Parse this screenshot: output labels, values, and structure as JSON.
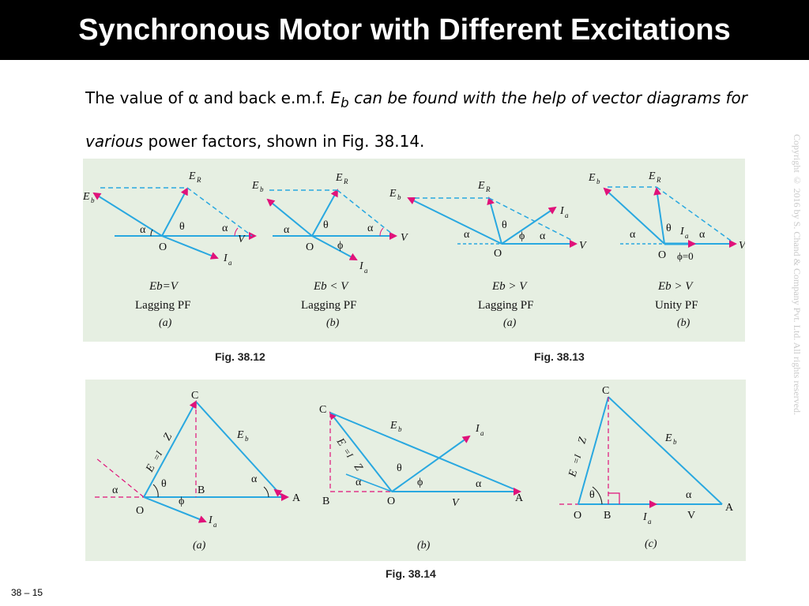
{
  "slide": {
    "title": "Synchronous Motor with Different Excitations",
    "paragraph": {
      "part1": "The value of α and back e.m.f. ",
      "eb_symbol": "E",
      "eb_sub": "b",
      "part2_italic": " can be found with the help of vector diagrams for various",
      "part3": " power factors, shown in Fig. 38.14."
    },
    "copyright": "Copyright © 2016 by S. Chand & Company Pvt. Ltd. All rights reserved.",
    "page_number": "38 – 15"
  },
  "figures": {
    "top_panel": {
      "caption_left": "Fig. 38.12",
      "caption_right": "Fig. 38.13",
      "diagrams": [
        {
          "condition": "Eb=V",
          "pf": "Lagging PF",
          "tag": "(a)"
        },
        {
          "condition": "Eb < V",
          "pf": "Lagging PF",
          "tag": "(b)"
        },
        {
          "condition": "Eb > V",
          "pf": "Lagging PF",
          "tag": "(a)"
        },
        {
          "condition": "Eb > V",
          "pf": "Unity PF",
          "tag": "(b)"
        }
      ],
      "phi_zero": "ϕ=0"
    },
    "bottom_panel": {
      "caption": "Fig. 38.14",
      "tags": [
        "(a)",
        "(b)",
        "(c)"
      ]
    },
    "labels": {
      "E": "E",
      "R": "R",
      "b": "b",
      "I": "I",
      "a": "a",
      "V": "V",
      "O": "O",
      "A": "A",
      "B": "B",
      "C": "C",
      "alpha": "α",
      "theta": "θ",
      "phi": "ϕ",
      "er_eq": "E",
      "iazs": "=I",
      "zs": "Z",
      "s": "s"
    },
    "colors": {
      "vector": "#29a8e0",
      "arrow": "#e0127a",
      "dashed": "#e0127a"
    }
  }
}
